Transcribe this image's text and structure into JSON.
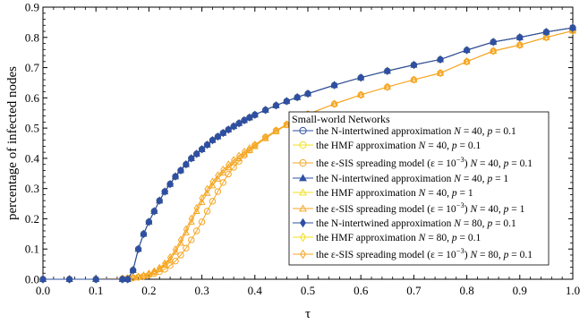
{
  "chart_data": {
    "type": "line",
    "title": "",
    "xlabel": "τ",
    "ylabel": "percentage of infected nodes",
    "xlim": [
      0.0,
      1.0
    ],
    "ylim": [
      0.0,
      0.9
    ],
    "xticks": [
      "0.0",
      "0.1",
      "0.2",
      "0.3",
      "0.4",
      "0.5",
      "0.6",
      "0.7",
      "0.8",
      "0.9",
      "1.0"
    ],
    "yticks": [
      "0.0",
      "0.1",
      "0.2",
      "0.3",
      "0.4",
      "0.5",
      "0.6",
      "0.7",
      "0.8",
      "0.9"
    ],
    "grid": false,
    "legend": {
      "title": "Small-world Networks",
      "placement": "lower-right"
    },
    "x": [
      0.0,
      0.05,
      0.1,
      0.15,
      0.16,
      0.17,
      0.18,
      0.19,
      0.2,
      0.21,
      0.22,
      0.23,
      0.24,
      0.25,
      0.26,
      0.27,
      0.28,
      0.29,
      0.3,
      0.31,
      0.32,
      0.33,
      0.34,
      0.35,
      0.36,
      0.37,
      0.38,
      0.39,
      0.4,
      0.42,
      0.44,
      0.46,
      0.48,
      0.5,
      0.55,
      0.6,
      0.65,
      0.7,
      0.75,
      0.8,
      0.85,
      0.9,
      0.95,
      1.0
    ],
    "series": [
      {
        "legend_parts": [
          "the N-intertwined approximation ",
          "N",
          " = 40, ",
          "p",
          " = 0.1"
        ],
        "color": "#2e4fa3",
        "marker": "circle-open",
        "values": [
          0.0,
          0.0,
          0.0,
          0.0,
          0.0,
          0.03,
          0.1,
          0.15,
          0.19,
          0.225,
          0.26,
          0.29,
          0.315,
          0.34,
          0.36,
          0.38,
          0.4,
          0.415,
          0.43,
          0.445,
          0.46,
          0.472,
          0.484,
          0.495,
          0.506,
          0.516,
          0.526,
          0.535,
          0.544,
          0.56,
          0.575,
          0.589,
          0.602,
          0.614,
          0.642,
          0.667,
          0.689,
          0.709,
          0.727,
          0.758,
          0.785,
          0.8,
          0.818,
          0.832
        ]
      },
      {
        "legend_parts": [
          "the HMF approximation ",
          "N",
          " = 40, ",
          "p",
          " = 0.1"
        ],
        "color": "#f0e020",
        "marker": "circle-open",
        "values": [
          0.0,
          0.0,
          0.0,
          0.0,
          0.0,
          0.03,
          0.1,
          0.15,
          0.19,
          0.225,
          0.26,
          0.29,
          0.315,
          0.34,
          0.36,
          0.38,
          0.4,
          0.415,
          0.43,
          0.445,
          0.46,
          0.472,
          0.484,
          0.495,
          0.506,
          0.516,
          0.526,
          0.535,
          0.544,
          0.56,
          0.575,
          0.589,
          0.602,
          0.614,
          0.642,
          0.667,
          0.689,
          0.709,
          0.727,
          0.758,
          0.785,
          0.8,
          0.818,
          0.832
        ]
      },
      {
        "legend_parts": [
          "the ε-SIS spreading model (ε = 10",
          "−3",
          ") ",
          "N",
          " = 40, ",
          "p",
          " = 0.1"
        ],
        "color": "#f5a623",
        "marker": "circle-open",
        "values": [
          0.0,
          0.0,
          0.0,
          0.002,
          0.003,
          0.005,
          0.007,
          0.01,
          0.014,
          0.019,
          0.025,
          0.033,
          0.045,
          0.06,
          0.08,
          0.103,
          0.13,
          0.16,
          0.19,
          0.225,
          0.258,
          0.29,
          0.32,
          0.348,
          0.37,
          0.39,
          0.41,
          0.427,
          0.443,
          0.47,
          0.492,
          0.512,
          0.53,
          0.546,
          0.58,
          0.61,
          0.636,
          0.66,
          0.682,
          0.72,
          0.755,
          0.775,
          0.8,
          0.822
        ]
      },
      {
        "legend_parts": [
          "the N-intertwined approximation ",
          "N",
          " = 40, ",
          "p",
          " = 1"
        ],
        "color": "#2e4fa3",
        "marker": "triangle-filled",
        "values": [
          0.0,
          0.0,
          0.0,
          0.0,
          0.0,
          0.03,
          0.1,
          0.15,
          0.19,
          0.225,
          0.26,
          0.29,
          0.315,
          0.34,
          0.36,
          0.38,
          0.4,
          0.415,
          0.43,
          0.445,
          0.46,
          0.472,
          0.484,
          0.495,
          0.506,
          0.516,
          0.526,
          0.535,
          0.544,
          0.56,
          0.575,
          0.589,
          0.602,
          0.614,
          0.642,
          0.667,
          0.689,
          0.709,
          0.727,
          0.758,
          0.785,
          0.8,
          0.818,
          0.832
        ]
      },
      {
        "legend_parts": [
          "the HMF approximation ",
          "N",
          " = 40, ",
          "p",
          " = 1"
        ],
        "color": "#f0e020",
        "marker": "triangle-open",
        "values": [
          0.0,
          0.0,
          0.0,
          0.0,
          0.0,
          0.03,
          0.1,
          0.15,
          0.19,
          0.225,
          0.26,
          0.29,
          0.315,
          0.34,
          0.36,
          0.38,
          0.4,
          0.415,
          0.43,
          0.445,
          0.46,
          0.472,
          0.484,
          0.495,
          0.506,
          0.516,
          0.526,
          0.535,
          0.544,
          0.56,
          0.575,
          0.589,
          0.602,
          0.614,
          0.642,
          0.667,
          0.689,
          0.709,
          0.727,
          0.758,
          0.785,
          0.8,
          0.818,
          0.832
        ]
      },
      {
        "legend_parts": [
          "the ε-SIS spreading model (ε = 10",
          "−3",
          ") ",
          "N",
          " = 40, ",
          "p",
          " = 1"
        ],
        "color": "#f5a623",
        "marker": "triangle-open",
        "values": [
          0.0,
          0.0,
          0.0,
          0.002,
          0.003,
          0.005,
          0.008,
          0.012,
          0.017,
          0.024,
          0.033,
          0.047,
          0.065,
          0.09,
          0.12,
          0.155,
          0.19,
          0.225,
          0.255,
          0.285,
          0.31,
          0.332,
          0.352,
          0.37,
          0.386,
          0.4,
          0.414,
          0.427,
          0.44,
          0.466,
          0.489,
          0.51,
          0.528,
          0.545,
          0.58,
          0.61,
          0.636,
          0.66,
          0.682,
          0.72,
          0.755,
          0.775,
          0.8,
          0.822
        ]
      },
      {
        "legend_parts": [
          "the N-intertwined approximation ",
          "N",
          " = 80, ",
          "p",
          " = 0.1"
        ],
        "color": "#2e4fa3",
        "marker": "diamond-filled",
        "values": [
          0.0,
          0.0,
          0.0,
          0.0,
          0.0,
          0.03,
          0.1,
          0.15,
          0.19,
          0.225,
          0.26,
          0.29,
          0.315,
          0.34,
          0.36,
          0.38,
          0.4,
          0.415,
          0.43,
          0.445,
          0.46,
          0.472,
          0.484,
          0.495,
          0.506,
          0.516,
          0.526,
          0.535,
          0.544,
          0.56,
          0.575,
          0.589,
          0.602,
          0.614,
          0.642,
          0.667,
          0.689,
          0.709,
          0.727,
          0.758,
          0.785,
          0.8,
          0.818,
          0.832
        ]
      },
      {
        "legend_parts": [
          "the HMF approximation ",
          "N",
          " = 80, ",
          "p",
          " = 0.1"
        ],
        "color": "#f0e020",
        "marker": "diamond-open",
        "values": [
          0.0,
          0.0,
          0.0,
          0.0,
          0.0,
          0.03,
          0.1,
          0.15,
          0.19,
          0.225,
          0.26,
          0.29,
          0.315,
          0.34,
          0.36,
          0.38,
          0.4,
          0.415,
          0.43,
          0.445,
          0.46,
          0.472,
          0.484,
          0.495,
          0.506,
          0.516,
          0.526,
          0.535,
          0.544,
          0.56,
          0.575,
          0.589,
          0.602,
          0.614,
          0.642,
          0.667,
          0.689,
          0.709,
          0.727,
          0.758,
          0.785,
          0.8,
          0.818,
          0.832
        ]
      },
      {
        "legend_parts": [
          "the ε-SIS spreading model (ε = 10",
          "−3",
          ") ",
          "N",
          " = 80, ",
          "p",
          " = 0.1"
        ],
        "color": "#f5a623",
        "marker": "diamond-open",
        "values": [
          0.0,
          0.0,
          0.0,
          0.002,
          0.003,
          0.005,
          0.008,
          0.012,
          0.018,
          0.026,
          0.037,
          0.052,
          0.072,
          0.098,
          0.13,
          0.165,
          0.2,
          0.235,
          0.268,
          0.298,
          0.322,
          0.343,
          0.362,
          0.379,
          0.394,
          0.408,
          0.421,
          0.433,
          0.445,
          0.47,
          0.492,
          0.512,
          0.53,
          0.546,
          0.58,
          0.61,
          0.636,
          0.66,
          0.682,
          0.72,
          0.755,
          0.775,
          0.8,
          0.822
        ]
      }
    ]
  }
}
